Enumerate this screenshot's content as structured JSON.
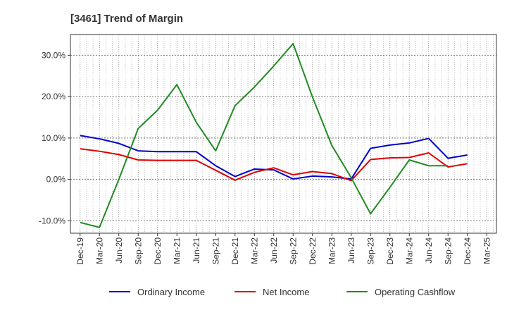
{
  "chart_data": {
    "type": "line",
    "title": "[3461]  Trend of Margin",
    "xlabel": "",
    "ylabel": "",
    "categories": [
      "Dec-19",
      "Mar-20",
      "Jun-20",
      "Sep-20",
      "Dec-20",
      "Mar-21",
      "Jun-21",
      "Sep-21",
      "Dec-21",
      "Mar-22",
      "Jun-22",
      "Sep-22",
      "Dec-22",
      "Mar-23",
      "Jun-23",
      "Sep-23",
      "Dec-23",
      "Mar-24",
      "Jun-24",
      "Sep-24",
      "Dec-24",
      "Mar-25"
    ],
    "ylim": [
      -13,
      35
    ],
    "yticks": [
      -10,
      0,
      10,
      20,
      30
    ],
    "ytick_labels": [
      "-10.0%",
      "0.0%",
      "10.0%",
      "20.0%",
      "30.0%"
    ],
    "grid": true,
    "legend_position": "bottom",
    "series": [
      {
        "name": "Ordinary Income",
        "color": "#0000cc",
        "values": [
          10.6,
          9.8,
          8.7,
          6.9,
          6.7,
          6.7,
          6.7,
          3.3,
          0.7,
          2.5,
          2.3,
          0.1,
          0.8,
          0.6,
          0.1,
          7.5,
          8.3,
          8.8,
          9.9,
          5.1,
          5.9,
          null
        ]
      },
      {
        "name": "Net Income",
        "color": "#dd0000",
        "values": [
          7.4,
          6.8,
          6.0,
          4.7,
          4.6,
          4.6,
          4.6,
          2.2,
          -0.2,
          1.7,
          2.8,
          1.1,
          1.9,
          1.4,
          -0.3,
          4.8,
          5.2,
          5.3,
          6.4,
          3.0,
          3.8,
          null
        ]
      },
      {
        "name": "Operating Cashflow",
        "color": "#228b22",
        "values": [
          -10.4,
          -11.6,
          0.0,
          12.3,
          16.7,
          22.9,
          13.8,
          6.9,
          17.8,
          22.3,
          27.4,
          32.8,
          19.9,
          8.2,
          0.4,
          -8.3,
          -1.9,
          4.7,
          3.3,
          3.3,
          null,
          null
        ]
      }
    ]
  }
}
